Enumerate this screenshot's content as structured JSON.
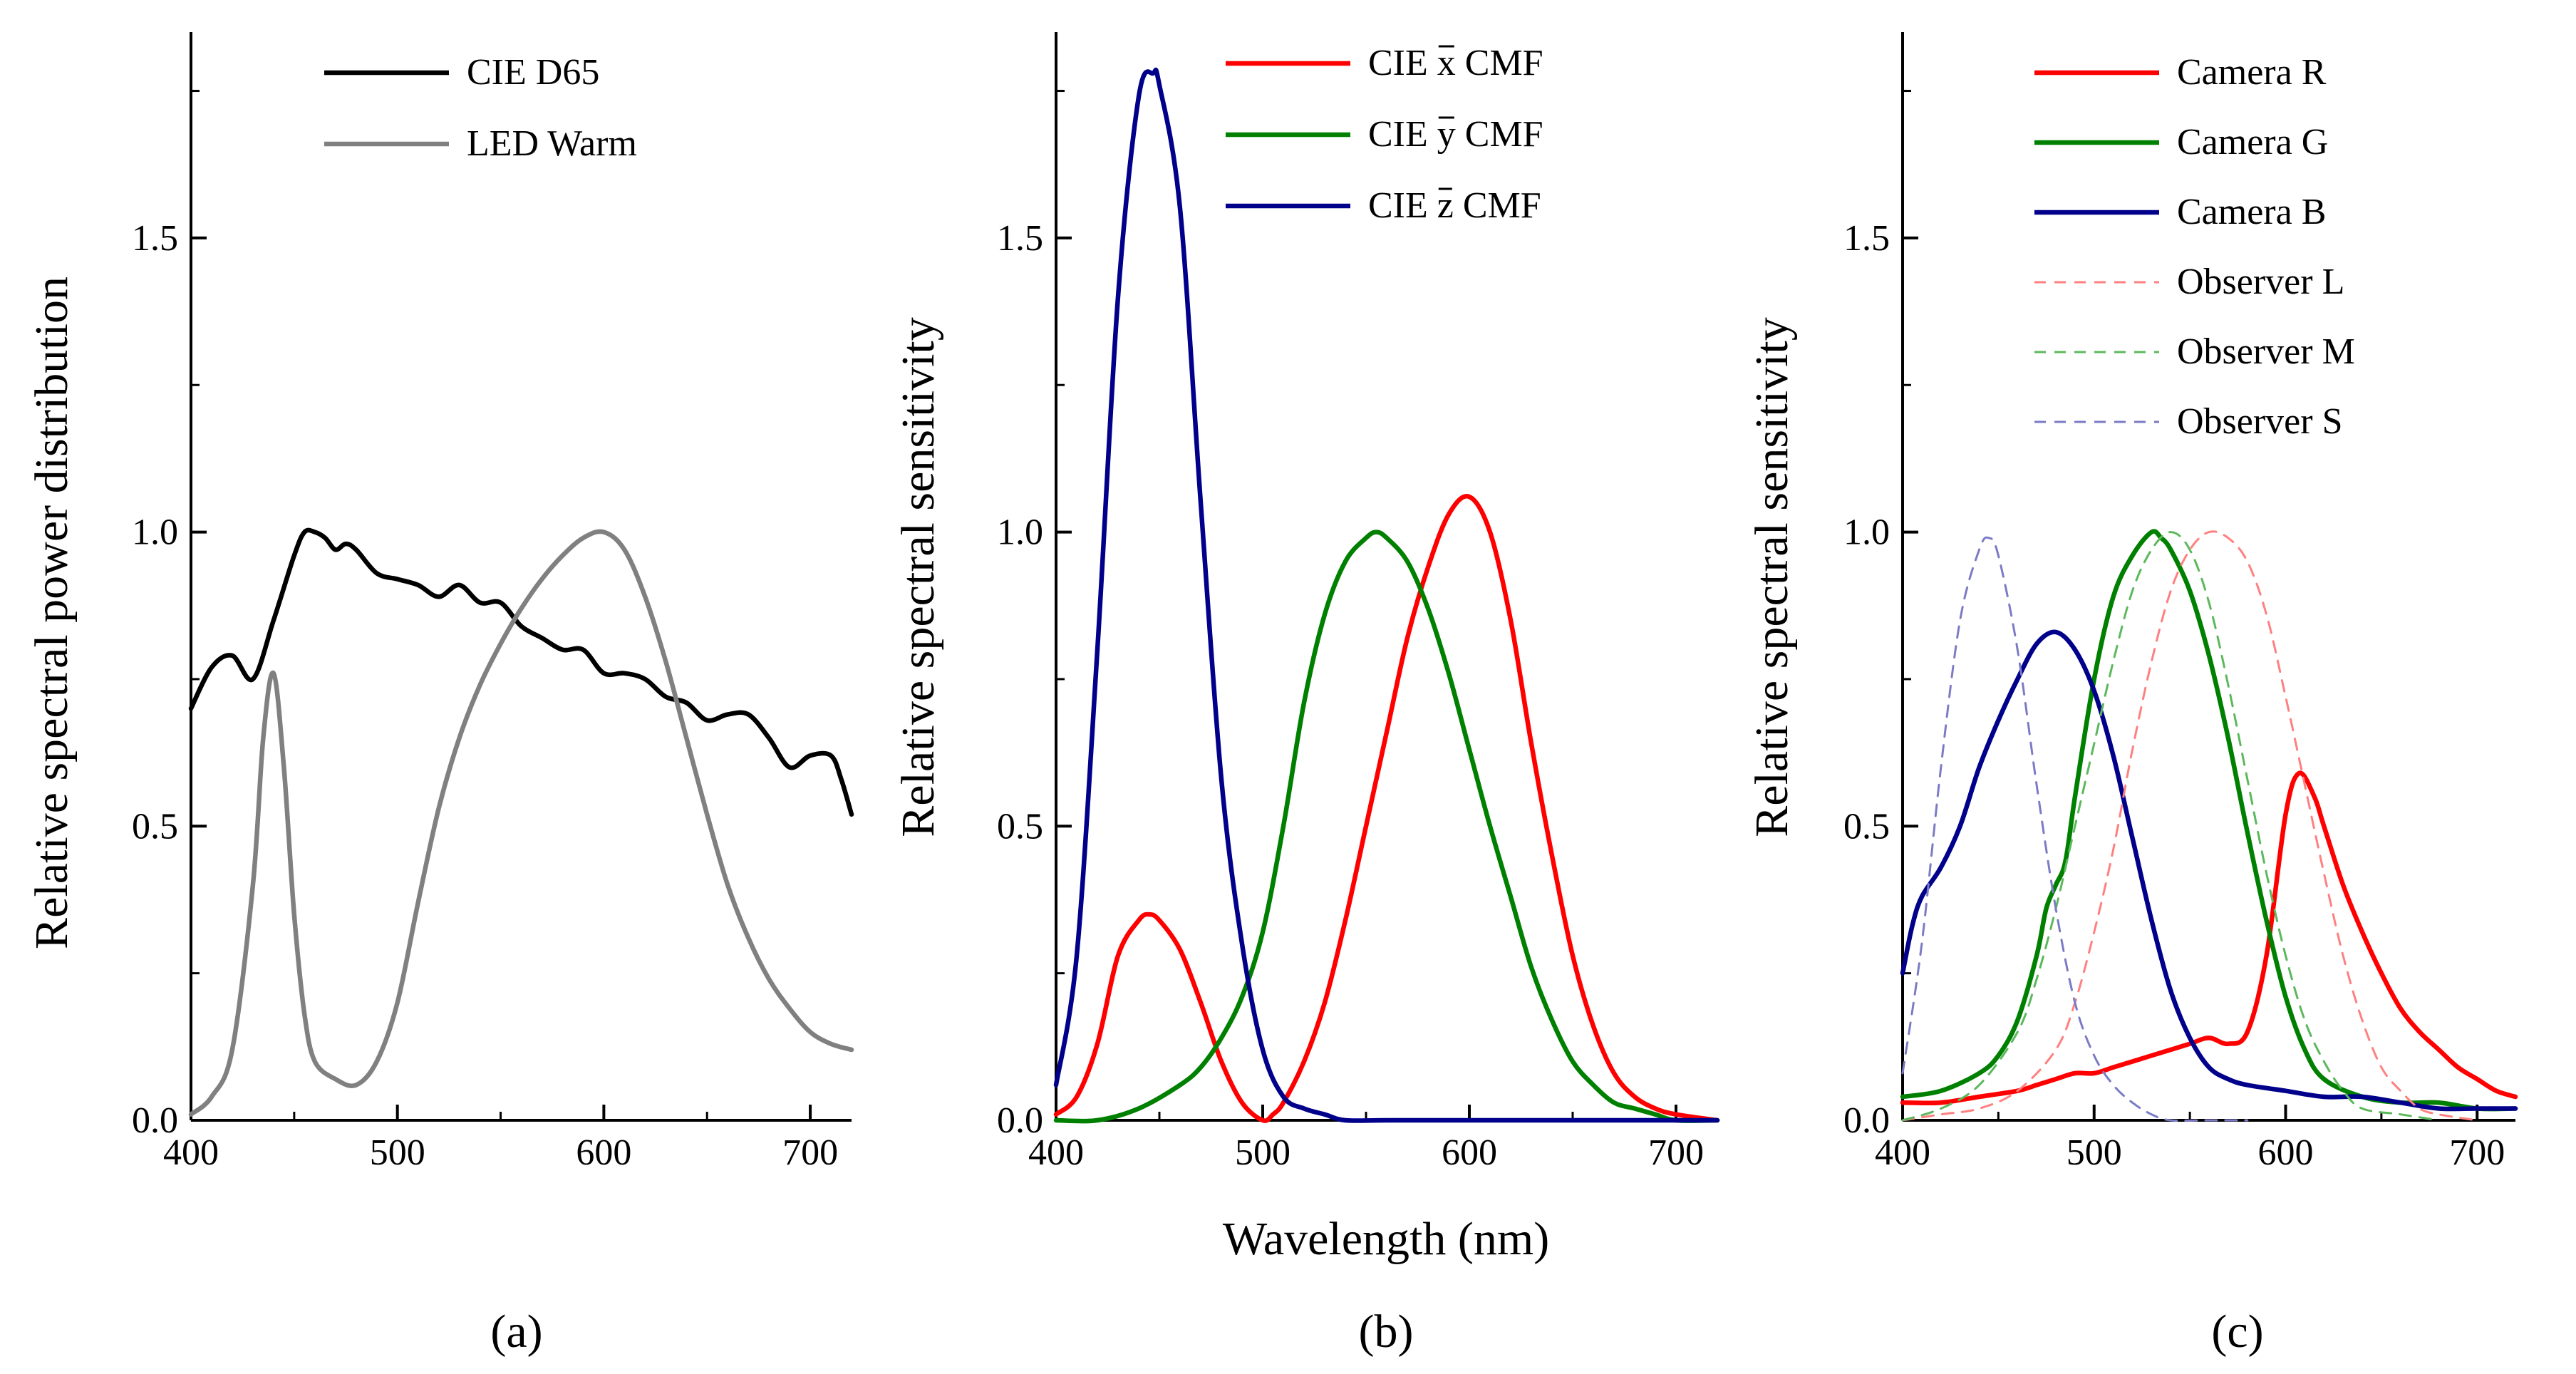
{
  "figure": {
    "xlabel": "Wavelength (nm)",
    "panel_labels": [
      "(a)",
      "(b)",
      "(c)"
    ]
  },
  "chart_data": [
    {
      "type": "line",
      "panel": "(a)",
      "title": "",
      "xlabel": "",
      "ylabel": "Relative spectral power distribution",
      "xlim": [
        400,
        720
      ],
      "ylim": [
        0,
        1.85
      ],
      "xticks": [
        400,
        500,
        600,
        700
      ],
      "yticks": [
        0.0,
        0.5,
        1.0,
        1.5
      ],
      "legend_position": "top-center",
      "series": [
        {
          "name": "CIE D65",
          "color": "#000000",
          "dash": false,
          "x": [
            400,
            410,
            420,
            430,
            440,
            450,
            455,
            460,
            465,
            470,
            475,
            480,
            490,
            500,
            510,
            520,
            530,
            540,
            550,
            560,
            570,
            580,
            590,
            600,
            610,
            620,
            630,
            640,
            650,
            660,
            670,
            680,
            690,
            700,
            710,
            715,
            720
          ],
          "y": [
            0.7,
            0.77,
            0.79,
            0.75,
            0.85,
            0.96,
            1.0,
            1.0,
            0.99,
            0.97,
            0.98,
            0.97,
            0.93,
            0.92,
            0.91,
            0.89,
            0.91,
            0.88,
            0.88,
            0.84,
            0.82,
            0.8,
            0.8,
            0.76,
            0.76,
            0.75,
            0.72,
            0.71,
            0.68,
            0.69,
            0.69,
            0.65,
            0.6,
            0.62,
            0.62,
            0.58,
            0.52
          ]
        },
        {
          "name": "LED Warm",
          "color": "#808080",
          "dash": false,
          "x": [
            400,
            410,
            420,
            430,
            435,
            440,
            445,
            450,
            455,
            460,
            470,
            480,
            490,
            500,
            510,
            520,
            530,
            540,
            550,
            560,
            570,
            580,
            590,
            600,
            610,
            620,
            630,
            640,
            650,
            660,
            670,
            680,
            690,
            700,
            710,
            720
          ],
          "y": [
            0.01,
            0.04,
            0.12,
            0.4,
            0.65,
            0.76,
            0.6,
            0.35,
            0.18,
            0.1,
            0.07,
            0.06,
            0.1,
            0.2,
            0.37,
            0.53,
            0.65,
            0.74,
            0.81,
            0.87,
            0.92,
            0.96,
            0.99,
            1.0,
            0.97,
            0.89,
            0.78,
            0.65,
            0.52,
            0.4,
            0.31,
            0.24,
            0.19,
            0.15,
            0.13,
            0.12
          ]
        }
      ]
    },
    {
      "type": "line",
      "panel": "(b)",
      "title": "",
      "xlabel": "Wavelength (nm)",
      "ylabel": "Relative spectral sensitivity",
      "xlim": [
        400,
        720
      ],
      "ylim": [
        0,
        1.85
      ],
      "xticks": [
        400,
        500,
        600,
        700
      ],
      "yticks": [
        0.0,
        0.5,
        1.0,
        1.5
      ],
      "legend_position": "top-right",
      "series": [
        {
          "name": "CIE x CMF",
          "color": "#ff0000",
          "dash": false,
          "x": [
            400,
            410,
            420,
            430,
            440,
            445,
            450,
            460,
            470,
            480,
            490,
            500,
            505,
            510,
            520,
            530,
            540,
            550,
            560,
            570,
            580,
            590,
            600,
            610,
            620,
            630,
            640,
            650,
            660,
            670,
            680,
            690,
            700,
            720
          ],
          "y": [
            0.01,
            0.04,
            0.13,
            0.28,
            0.34,
            0.35,
            0.34,
            0.29,
            0.2,
            0.1,
            0.03,
            0.0,
            0.01,
            0.03,
            0.1,
            0.2,
            0.34,
            0.5,
            0.66,
            0.82,
            0.94,
            1.03,
            1.06,
            1.0,
            0.85,
            0.64,
            0.45,
            0.28,
            0.16,
            0.08,
            0.04,
            0.02,
            0.01,
            0.0
          ]
        },
        {
          "name": "CIE y CMF",
          "color": "#008000",
          "dash": false,
          "x": [
            400,
            420,
            440,
            460,
            470,
            480,
            490,
            500,
            510,
            520,
            530,
            540,
            550,
            555,
            560,
            570,
            580,
            590,
            600,
            610,
            620,
            630,
            640,
            650,
            660,
            670,
            680,
            690,
            700,
            720
          ],
          "y": [
            0.0,
            0.0,
            0.02,
            0.06,
            0.09,
            0.14,
            0.21,
            0.32,
            0.5,
            0.71,
            0.86,
            0.95,
            0.99,
            1.0,
            0.99,
            0.95,
            0.87,
            0.76,
            0.63,
            0.5,
            0.38,
            0.26,
            0.17,
            0.1,
            0.06,
            0.03,
            0.02,
            0.01,
            0.0,
            0.0
          ]
        },
        {
          "name": "CIE z CMF",
          "color": "#00008b",
          "dash": false,
          "x": [
            400,
            410,
            420,
            430,
            440,
            447,
            450,
            460,
            470,
            480,
            490,
            500,
            510,
            520,
            530,
            540,
            560,
            600,
            720
          ],
          "y": [
            0.06,
            0.28,
            0.8,
            1.4,
            1.74,
            1.78,
            1.76,
            1.55,
            1.05,
            0.58,
            0.3,
            0.12,
            0.04,
            0.02,
            0.01,
            0.0,
            0.0,
            0.0,
            0.0
          ]
        }
      ]
    },
    {
      "type": "line",
      "panel": "(c)",
      "title": "",
      "xlabel": "",
      "ylabel": "Relative spectral sensitivity",
      "xlim": [
        400,
        720
      ],
      "ylim": [
        0,
        1.85
      ],
      "xticks": [
        400,
        500,
        600,
        700
      ],
      "yticks": [
        0.0,
        0.5,
        1.0,
        1.5
      ],
      "legend_position": "top-right",
      "series": [
        {
          "name": "Camera R",
          "color": "#ff0000",
          "dash": false,
          "x": [
            400,
            420,
            440,
            460,
            470,
            480,
            490,
            500,
            510,
            520,
            530,
            540,
            550,
            560,
            570,
            580,
            590,
            600,
            607,
            615,
            620,
            630,
            640,
            650,
            660,
            670,
            680,
            690,
            700,
            710,
            720
          ],
          "y": [
            0.03,
            0.03,
            0.04,
            0.05,
            0.06,
            0.07,
            0.08,
            0.08,
            0.09,
            0.1,
            0.11,
            0.12,
            0.13,
            0.14,
            0.13,
            0.15,
            0.28,
            0.52,
            0.59,
            0.55,
            0.5,
            0.4,
            0.32,
            0.25,
            0.19,
            0.15,
            0.12,
            0.09,
            0.07,
            0.05,
            0.04
          ]
        },
        {
          "name": "Camera G",
          "color": "#008000",
          "dash": false,
          "x": [
            400,
            420,
            440,
            450,
            460,
            470,
            475,
            480,
            485,
            490,
            500,
            510,
            520,
            530,
            535,
            540,
            550,
            560,
            570,
            580,
            590,
            600,
            610,
            620,
            640,
            660,
            680,
            700,
            720
          ],
          "y": [
            0.04,
            0.05,
            0.08,
            0.11,
            0.17,
            0.28,
            0.36,
            0.4,
            0.44,
            0.55,
            0.75,
            0.89,
            0.96,
            1.0,
            0.99,
            0.97,
            0.9,
            0.79,
            0.65,
            0.49,
            0.34,
            0.21,
            0.12,
            0.07,
            0.04,
            0.03,
            0.03,
            0.02,
            0.02
          ]
        },
        {
          "name": "Camera B",
          "color": "#00008b",
          "dash": false,
          "x": [
            400,
            405,
            410,
            420,
            430,
            440,
            450,
            460,
            470,
            480,
            490,
            500,
            510,
            520,
            530,
            540,
            550,
            560,
            570,
            580,
            600,
            620,
            640,
            660,
            680,
            700,
            720
          ],
          "y": [
            0.25,
            0.33,
            0.38,
            0.43,
            0.5,
            0.6,
            0.68,
            0.75,
            0.81,
            0.83,
            0.8,
            0.73,
            0.62,
            0.48,
            0.34,
            0.22,
            0.14,
            0.09,
            0.07,
            0.06,
            0.05,
            0.04,
            0.04,
            0.03,
            0.02,
            0.02,
            0.02
          ]
        },
        {
          "name": "Observer L",
          "color": "#ff8080",
          "dash": true,
          "x": [
            400,
            420,
            440,
            460,
            480,
            490,
            500,
            510,
            520,
            530,
            540,
            550,
            560,
            570,
            580,
            590,
            600,
            610,
            620,
            630,
            640,
            650,
            660,
            670,
            680,
            700
          ],
          "y": [
            0.0,
            0.01,
            0.02,
            0.05,
            0.12,
            0.2,
            0.32,
            0.46,
            0.63,
            0.78,
            0.9,
            0.97,
            1.0,
            0.99,
            0.95,
            0.86,
            0.72,
            0.57,
            0.42,
            0.28,
            0.17,
            0.09,
            0.05,
            0.02,
            0.01,
            0.0
          ]
        },
        {
          "name": "Observer M",
          "color": "#5cb85c",
          "dash": true,
          "x": [
            400,
            420,
            440,
            460,
            470,
            480,
            490,
            500,
            510,
            520,
            530,
            540,
            550,
            560,
            570,
            580,
            590,
            600,
            610,
            620,
            630,
            640,
            660,
            680
          ],
          "y": [
            0.0,
            0.02,
            0.06,
            0.15,
            0.24,
            0.36,
            0.5,
            0.64,
            0.78,
            0.9,
            0.97,
            1.0,
            0.97,
            0.88,
            0.74,
            0.58,
            0.42,
            0.28,
            0.17,
            0.1,
            0.05,
            0.02,
            0.01,
            0.0
          ]
        },
        {
          "name": "Observer S",
          "color": "#7b7bc6",
          "dash": true,
          "x": [
            400,
            410,
            420,
            430,
            440,
            445,
            450,
            460,
            470,
            480,
            490,
            500,
            510,
            520,
            530,
            540,
            560,
            580
          ],
          "y": [
            0.08,
            0.3,
            0.6,
            0.85,
            0.97,
            0.99,
            0.96,
            0.8,
            0.57,
            0.36,
            0.2,
            0.11,
            0.06,
            0.03,
            0.01,
            0.0,
            0.0,
            0.0
          ]
        }
      ]
    }
  ]
}
